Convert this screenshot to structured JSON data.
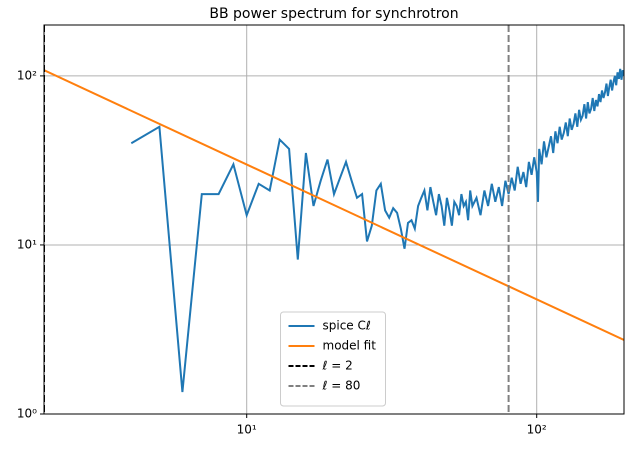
{
  "chart_data": {
    "type": "line",
    "title": "BB power spectrum for synchrotron",
    "xscale": "log",
    "yscale": "log",
    "grid": true,
    "legend": "lower center",
    "xlim": [
      2,
      200
    ],
    "ylim": [
      1,
      200
    ],
    "xticks": [
      {
        "value": 10,
        "label": "10¹"
      },
      {
        "value": 100,
        "label": "10²"
      }
    ],
    "yticks": [
      {
        "value": 1,
        "label": "10⁰"
      },
      {
        "value": 10,
        "label": "10¹"
      },
      {
        "value": 100,
        "label": "10²"
      }
    ],
    "series": [
      {
        "name": "spice Cℓ",
        "color": "#1f77b4",
        "x": [
          4,
          5,
          6,
          7,
          8,
          9,
          10,
          11,
          12,
          13,
          14,
          15,
          16,
          17,
          18,
          19,
          20,
          21,
          22,
          23,
          24,
          25,
          26,
          27,
          28,
          29,
          30,
          31,
          32,
          33,
          34,
          35,
          36,
          37,
          38,
          39,
          40,
          41,
          42,
          43,
          44,
          45,
          46,
          47,
          48,
          49,
          50,
          51,
          52,
          53,
          54,
          55,
          56,
          57,
          58,
          59,
          60,
          62,
          64,
          66,
          68,
          70,
          72,
          74,
          76,
          78,
          80,
          82,
          84,
          86,
          88,
          90,
          92,
          94,
          96,
          98,
          100,
          101,
          102,
          104,
          106,
          108,
          110,
          112,
          114,
          116,
          118,
          120,
          122,
          124,
          126,
          128,
          130,
          132,
          134,
          136,
          138,
          140,
          142,
          144,
          146,
          148,
          150,
          152,
          154,
          156,
          158,
          160,
          162,
          164,
          166,
          168,
          170,
          172,
          174,
          176,
          178,
          180,
          182,
          184,
          186,
          188,
          190,
          192,
          194,
          196,
          198,
          200
        ],
        "values": [
          40,
          50,
          1.35,
          20,
          20,
          30,
          15,
          23,
          21,
          42,
          37,
          8.2,
          35,
          17,
          24,
          32,
          20,
          25,
          31,
          24,
          19,
          20,
          10.5,
          13,
          21,
          23,
          16,
          14.5,
          16.5,
          15.5,
          12.5,
          9.5,
          13.5,
          14,
          12.5,
          17,
          19,
          21,
          16,
          22,
          18,
          15,
          20,
          17,
          13,
          19,
          16,
          13,
          18,
          17,
          15,
          20,
          17,
          18,
          14,
          21,
          17,
          19,
          15,
          21,
          17,
          23,
          18,
          22,
          17,
          24,
          20,
          25,
          21,
          29,
          23,
          27,
          22,
          31,
          26,
          33,
          27,
          18,
          37,
          30,
          41,
          33,
          38,
          44,
          35,
          47,
          40,
          50,
          42,
          46,
          53,
          44,
          56,
          48,
          52,
          60,
          50,
          63,
          55,
          58,
          68,
          56,
          70,
          60,
          64,
          74,
          62,
          72,
          66,
          78,
          70,
          82,
          74,
          80,
          90,
          76,
          86,
          95,
          82,
          92,
          100,
          88,
          105,
          96,
          110,
          95,
          108,
          100
        ]
      },
      {
        "name": "model fit",
        "color": "#ff7f0e",
        "x": [
          2,
          200
        ],
        "values": [
          108,
          2.74
        ]
      }
    ],
    "vlines": [
      {
        "name": "ℓ = 2",
        "x": 2,
        "color": "#000000"
      },
      {
        "name": "ℓ = 80",
        "x": 80,
        "color": "#808080"
      }
    ]
  }
}
